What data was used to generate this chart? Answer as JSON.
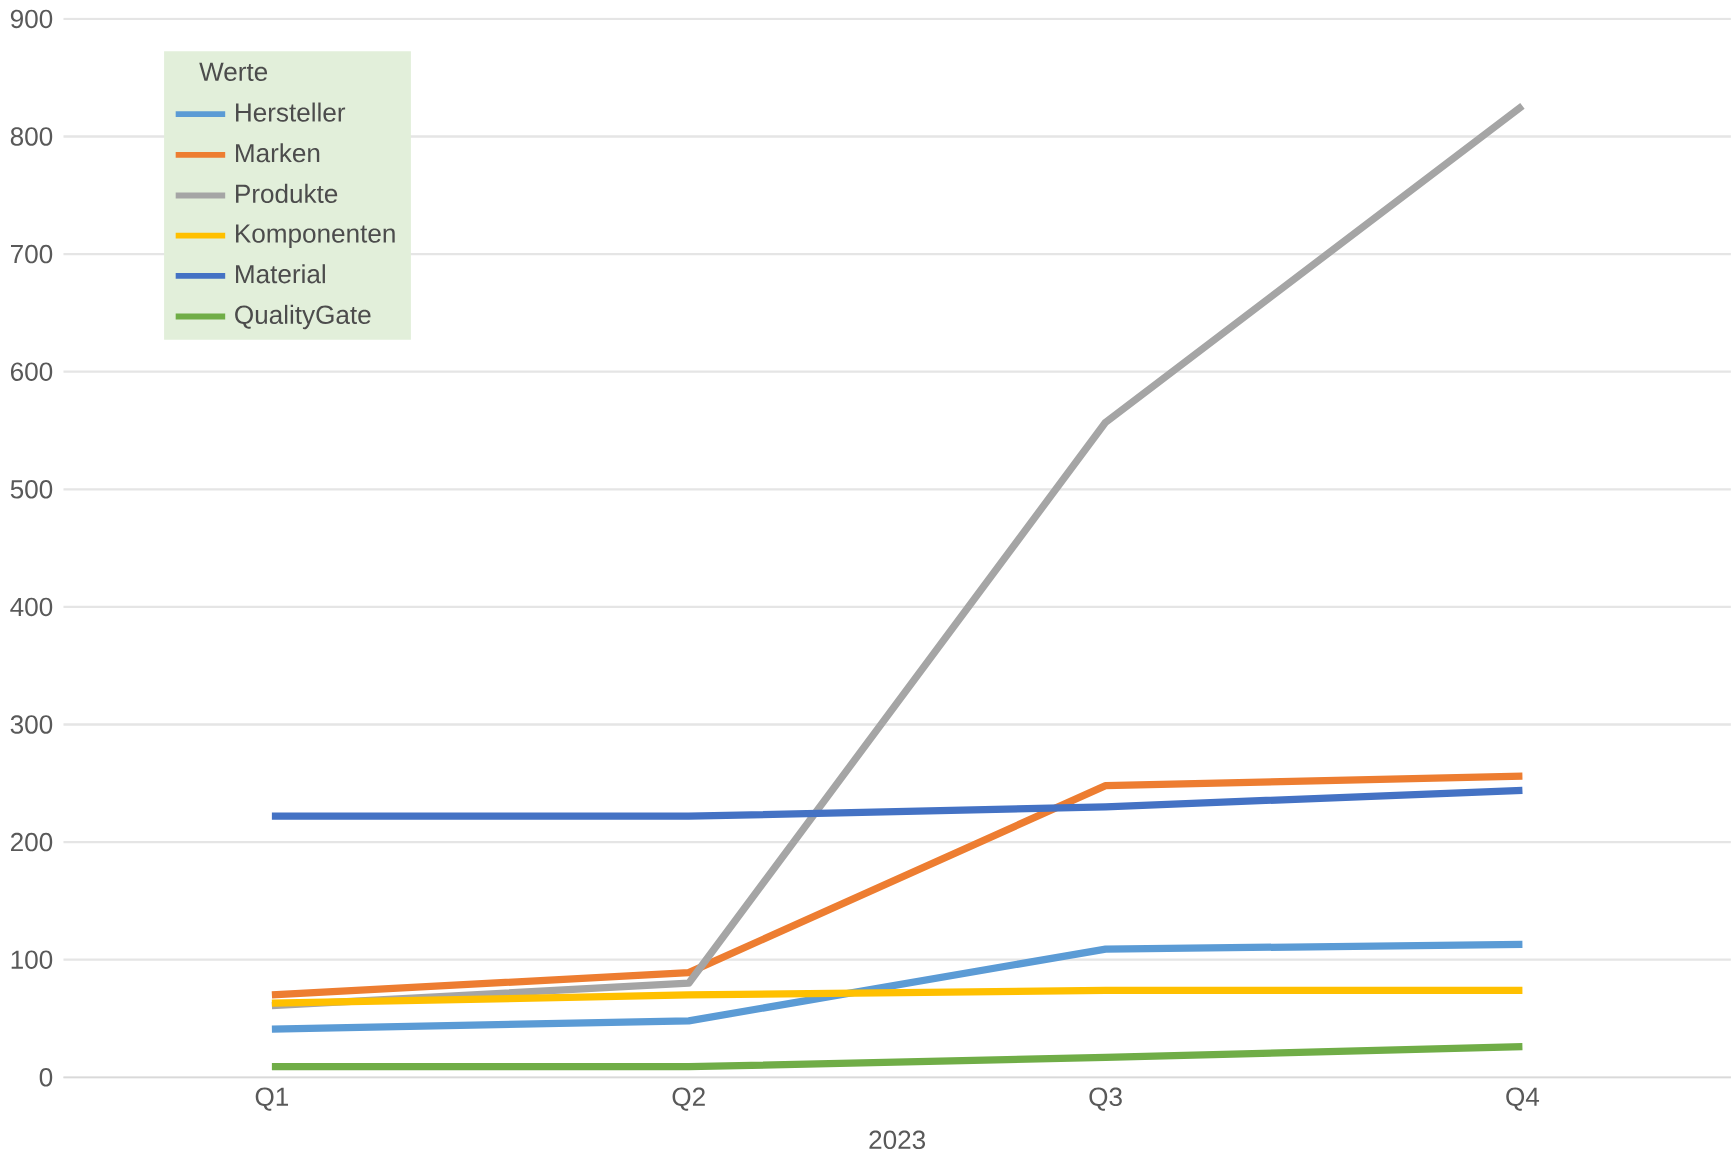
{
  "chart_data": {
    "type": "line",
    "xlabel": "2023",
    "legend_title": "Werte",
    "categories": [
      "Q1",
      "Q2",
      "Q3",
      "Q4"
    ],
    "series": [
      {
        "name": "Hersteller",
        "color": "#5b9bd5",
        "values": [
          41,
          48,
          109,
          113
        ]
      },
      {
        "name": "Marken",
        "color": "#ed7d31",
        "values": [
          70,
          89,
          248,
          256
        ]
      },
      {
        "name": "Produkte",
        "color": "#a5a5a5",
        "values": [
          61,
          80,
          557,
          826
        ]
      },
      {
        "name": "Komponenten",
        "color": "#ffc000",
        "values": [
          63,
          70,
          74,
          74
        ]
      },
      {
        "name": "Material",
        "color": "#4472c4",
        "values": [
          222,
          222,
          230,
          244
        ]
      },
      {
        "name": "QualityGate",
        "color": "#70ad47",
        "values": [
          9,
          9,
          17,
          26
        ]
      }
    ],
    "ylim": [
      0,
      900
    ],
    "yticks": [
      0,
      100,
      200,
      300,
      400,
      500,
      600,
      700,
      800,
      900
    ],
    "grid": "y",
    "legend": "top left",
    "marker": "none",
    "line_style": "solid"
  }
}
